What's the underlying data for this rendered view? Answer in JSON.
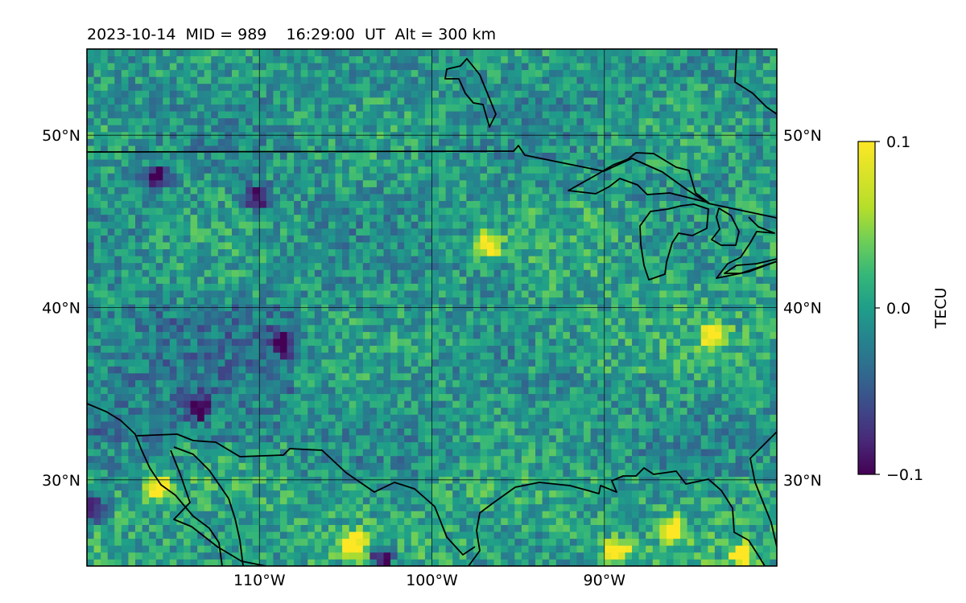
{
  "chart_data": {
    "type": "heatmap",
    "title": "2023-10-14  MID = 989    16:29:00  UT  Alt = 300 km",
    "map": {
      "lon_range": [
        -120,
        -80
      ],
      "lat_range": [
        25,
        55
      ],
      "grid": true
    },
    "x_ticks": [
      {
        "value": -110,
        "label": "110°W"
      },
      {
        "value": -100,
        "label": "100°W"
      },
      {
        "value": -90,
        "label": "90°W"
      }
    ],
    "y_ticks": [
      {
        "value": 50,
        "label": "50°N"
      },
      {
        "value": 40,
        "label": "40°N"
      },
      {
        "value": 30,
        "label": "30°N"
      }
    ],
    "colorbar": {
      "label": "TECU",
      "vmin": -0.1,
      "vmax": 0.1,
      "colormap": "viridis",
      "ticks": [
        {
          "value": 0.1,
          "label": "0.1"
        },
        {
          "value": 0.0,
          "label": "0.0"
        },
        {
          "value": -0.1,
          "label": "−0.1"
        }
      ]
    },
    "features": {
      "hotspots_tecu_approx_0.1": [
        {
          "lon": -115.8,
          "lat": 29.6
        },
        {
          "lon": -104.5,
          "lat": 26.3
        },
        {
          "lon": -89.3,
          "lat": 25.8
        },
        {
          "lon": -86.0,
          "lat": 27.1
        },
        {
          "lon": -82.0,
          "lat": 25.6
        },
        {
          "lon": -83.6,
          "lat": 38.4
        },
        {
          "lon": -96.7,
          "lat": 43.7
        }
      ],
      "cold_spots_tecu_approx_minus_0.1": [
        {
          "lon": -119.6,
          "lat": 28.3
        },
        {
          "lon": -102.9,
          "lat": 25.4
        },
        {
          "lon": -113.6,
          "lat": 34.2
        },
        {
          "lon": -108.7,
          "lat": 38.0
        },
        {
          "lon": -116.0,
          "lat": 47.6
        },
        {
          "lon": -110.1,
          "lat": 46.4
        }
      ]
    }
  }
}
